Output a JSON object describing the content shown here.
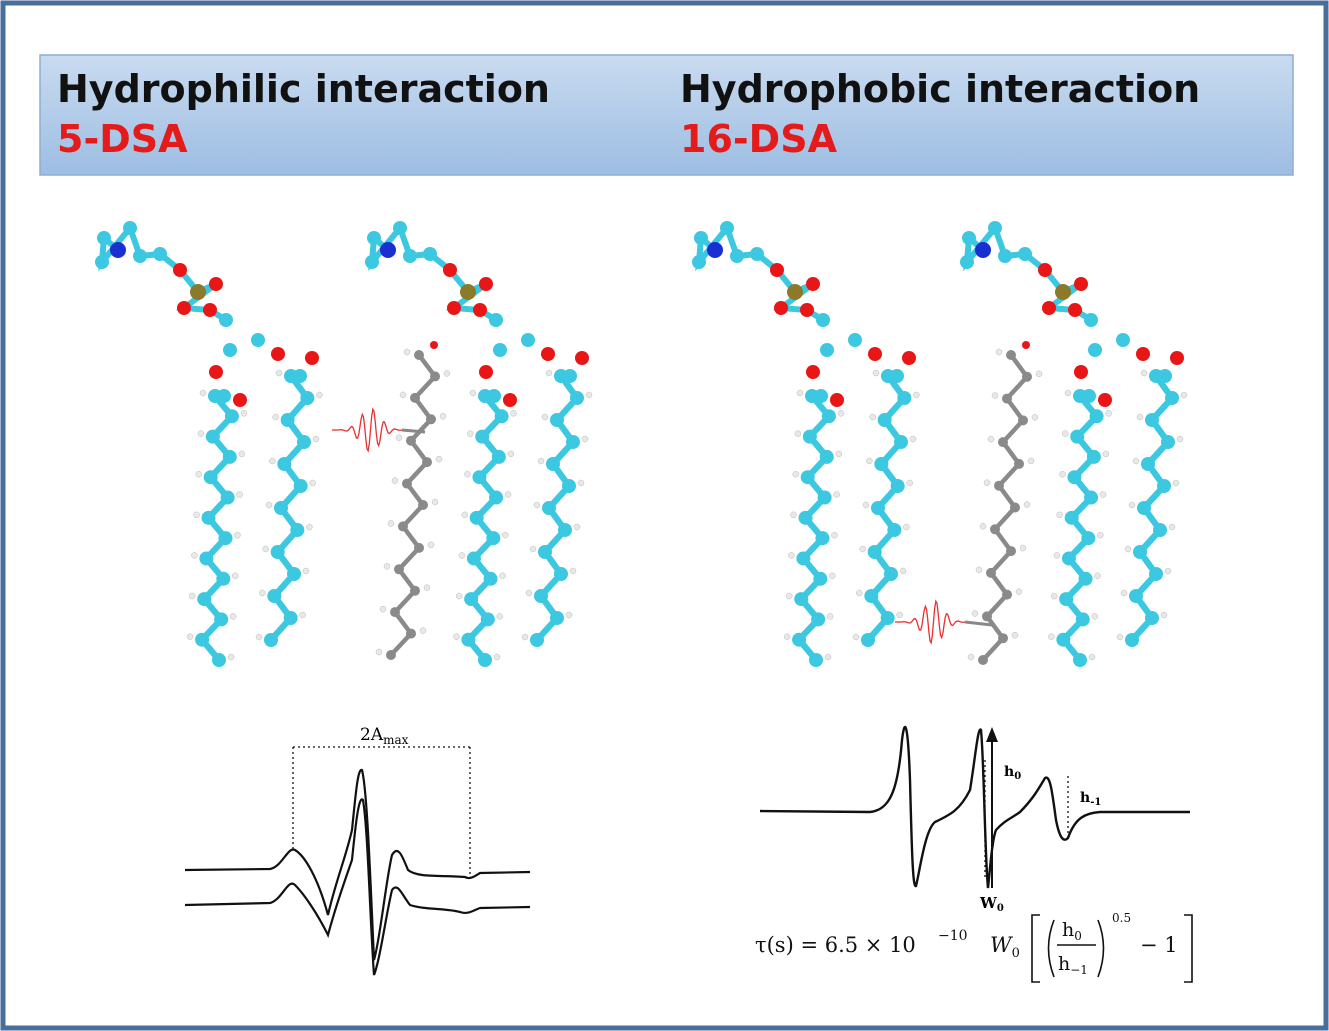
{
  "panels": [
    {
      "title": "Hydrophilic interaction",
      "probe": "5-DSA",
      "width_label": {
        "base": "2A",
        "sub": "max"
      }
    },
    {
      "title": "Hydrophobic interaction",
      "probe": "16-DSA",
      "h0_label": {
        "base": "h",
        "sub": "0"
      },
      "h1_label": {
        "base": "h",
        "sub": "-1"
      },
      "w0_label": {
        "base": "W",
        "sub": "0"
      }
    }
  ],
  "formula": {
    "lead": "τ(s) = 6.5 × 10",
    "exponent": "−10",
    "w": "W",
    "w_sub": "0",
    "num": "h",
    "num_sub": "0",
    "den": "h",
    "den_sub": "−1",
    "power": "0.5",
    "tail": "− 1"
  }
}
